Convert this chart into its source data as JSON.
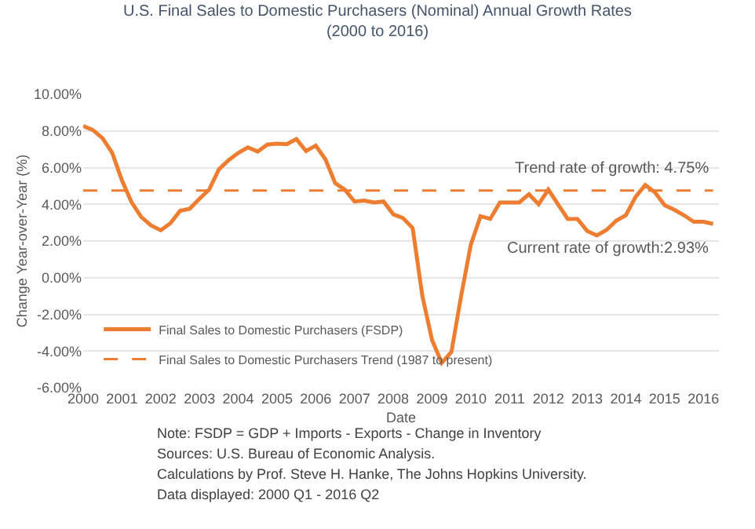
{
  "chart_data": {
    "type": "line",
    "title": "U.S. Final Sales to Domestic Purchasers (Nominal) Annual Growth Rates\n(2000 to 2016)",
    "xlabel": "Date",
    "ylabel": "Change Year-over-Year (%)",
    "xlim": [
      2000,
      2016.4
    ],
    "xticks": [
      2000,
      2001,
      2002,
      2003,
      2004,
      2005,
      2006,
      2007,
      2008,
      2009,
      2010,
      2011,
      2012,
      2013,
      2014,
      2015,
      2016
    ],
    "ylim": [
      -6,
      10
    ],
    "yticks": [
      {
        "value": -6,
        "label": "-6.00%"
      },
      {
        "value": -4,
        "label": "-4.00%"
      },
      {
        "value": -2,
        "label": "-2.00%"
      },
      {
        "value": 0,
        "label": "0.00%"
      },
      {
        "value": 2,
        "label": "2.00%"
      },
      {
        "value": 4,
        "label": "4.00%"
      },
      {
        "value": 6,
        "label": "6.00%"
      },
      {
        "value": 8,
        "label": "8.00%"
      },
      {
        "value": 10,
        "label": "10.00%"
      }
    ],
    "grid": "y",
    "legend": "bottom left",
    "marker": "none",
    "series": [
      {
        "name": "Final Sales to Domestic Purchasers (FSDP)",
        "color": "#ed7d31",
        "line_style": "solid",
        "x": [
          2000,
          2000.25,
          2000.5,
          2000.75,
          2001,
          2001.25,
          2001.5,
          2001.75,
          2002,
          2002.25,
          2002.5,
          2002.75,
          2003,
          2003.25,
          2003.5,
          2003.75,
          2004,
          2004.25,
          2004.5,
          2004.75,
          2005,
          2005.25,
          2005.5,
          2005.75,
          2006,
          2006.25,
          2006.5,
          2006.75,
          2007,
          2007.25,
          2007.5,
          2007.75,
          2008,
          2008.25,
          2008.5,
          2008.75,
          2009,
          2009.25,
          2009.5,
          2009.75,
          2010,
          2010.25,
          2010.5,
          2010.75,
          2011,
          2011.25,
          2011.5,
          2011.75,
          2012,
          2012.25,
          2012.5,
          2012.75,
          2013,
          2013.25,
          2013.5,
          2013.75,
          2014,
          2014.25,
          2014.5,
          2014.75,
          2015,
          2015.25,
          2015.5,
          2015.75,
          2016,
          2016.25
        ],
        "values": [
          8.27,
          8.05,
          7.6,
          6.8,
          5.3,
          4.1,
          3.3,
          2.85,
          2.58,
          2.96,
          3.65,
          3.76,
          4.3,
          4.8,
          5.9,
          6.4,
          6.8,
          7.1,
          6.87,
          7.25,
          7.3,
          7.27,
          7.55,
          6.9,
          7.2,
          6.45,
          5.15,
          4.8,
          4.15,
          4.2,
          4.1,
          4.15,
          3.45,
          3.25,
          2.7,
          -1.0,
          -3.4,
          -4.65,
          -4.05,
          -1.0,
          1.8,
          3.35,
          3.2,
          4.1,
          4.1,
          4.1,
          4.55,
          4.0,
          4.8,
          4.0,
          3.2,
          3.2,
          2.55,
          2.3,
          2.6,
          3.1,
          3.4,
          4.4,
          5.05,
          4.65,
          3.95,
          3.7,
          3.4,
          3.05,
          3.05,
          2.93
        ]
      },
      {
        "name": "Final Sales to Domestic Purchasers Trend (1987 to present)",
        "color": "#ed7d31",
        "line_style": "dashed",
        "x": [
          2000,
          2016.25
        ],
        "values": [
          4.75,
          4.75
        ]
      }
    ],
    "annotations": [
      {
        "text": "Trend rate of growth: 4.75%",
        "x": 2016.25,
        "y": 4.75
      },
      {
        "text": "Current rate of growth:2.93%",
        "x": 2016.25,
        "y": 2.93
      },
      "Note: FSDP = GDP + Imports - Exports - Change in Inventory",
      "Sources: U.S. Bureau of Economic Analysis.",
      "Calculations by Prof. Steve H. Hanke, The Johns Hopkins University.",
      "Data displayed: 2000 Q1 - 2016 Q2"
    ]
  }
}
